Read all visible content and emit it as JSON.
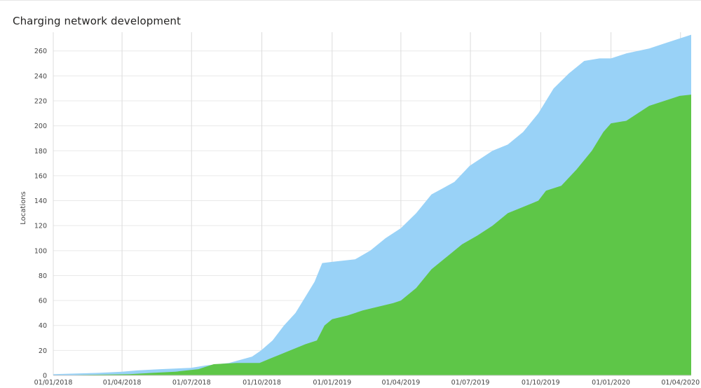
{
  "header": {
    "title": "Charging network development"
  },
  "chart_data": {
    "type": "area",
    "title": "Charging network development",
    "xlabel": "",
    "ylabel": "Locations",
    "ylim": [
      0,
      275
    ],
    "y_ticks": [
      0,
      20,
      40,
      60,
      80,
      100,
      120,
      140,
      160,
      180,
      200,
      220,
      240,
      260
    ],
    "x_range": [
      "2018-01-01",
      "2020-04-15"
    ],
    "x_ticks": [
      {
        "date": "2018-01-01",
        "label": "01/01/2018"
      },
      {
        "date": "2018-04-01",
        "label": "01/04/2018"
      },
      {
        "date": "2018-07-01",
        "label": "01/07/2018"
      },
      {
        "date": "2018-10-01",
        "label": "01/10/2018"
      },
      {
        "date": "2019-01-01",
        "label": "01/01/2019"
      },
      {
        "date": "2019-04-01",
        "label": "01/04/2019"
      },
      {
        "date": "2019-07-01",
        "label": "01/07/2019"
      },
      {
        "date": "2019-10-01",
        "label": "01/10/2019"
      },
      {
        "date": "2020-01-01",
        "label": "01/01/2020"
      },
      {
        "date": "2020-04-01",
        "label": "01/04/2020"
      }
    ],
    "grid": true,
    "stacked": false,
    "series": [
      {
        "color": "#99d2f7",
        "points": [
          [
            "2018-01-01",
            1
          ],
          [
            "2018-03-01",
            2
          ],
          [
            "2018-04-01",
            3
          ],
          [
            "2018-04-21",
            4
          ],
          [
            "2018-05-21",
            5
          ],
          [
            "2018-06-30",
            6
          ],
          [
            "2018-07-20",
            8
          ],
          [
            "2018-08-19",
            10
          ],
          [
            "2018-09-18",
            15
          ],
          [
            "2018-09-30",
            20
          ],
          [
            "2018-10-15",
            28
          ],
          [
            "2018-10-30",
            40
          ],
          [
            "2018-11-14",
            50
          ],
          [
            "2018-11-29",
            65
          ],
          [
            "2018-12-09",
            75
          ],
          [
            "2018-12-19",
            90
          ],
          [
            "2019-01-01",
            91
          ],
          [
            "2019-01-31",
            93
          ],
          [
            "2019-02-20",
            100
          ],
          [
            "2019-03-12",
            110
          ],
          [
            "2019-04-01",
            118
          ],
          [
            "2019-04-21",
            130
          ],
          [
            "2019-05-11",
            145
          ],
          [
            "2019-06-10",
            155
          ],
          [
            "2019-06-30",
            168
          ],
          [
            "2019-07-30",
            180
          ],
          [
            "2019-08-19",
            185
          ],
          [
            "2019-09-08",
            195
          ],
          [
            "2019-09-28",
            210
          ],
          [
            "2019-10-18",
            230
          ],
          [
            "2019-11-07",
            242
          ],
          [
            "2019-11-27",
            252
          ],
          [
            "2019-12-17",
            254
          ],
          [
            "2020-01-01",
            254
          ],
          [
            "2020-01-21",
            258
          ],
          [
            "2020-02-20",
            262
          ],
          [
            "2020-03-11",
            266
          ],
          [
            "2020-03-31",
            270
          ],
          [
            "2020-04-15",
            273
          ]
        ]
      },
      {
        "color": "#5ec648",
        "points": [
          [
            "2018-01-01",
            0
          ],
          [
            "2018-04-11",
            1
          ],
          [
            "2018-05-11",
            2
          ],
          [
            "2018-06-10",
            3
          ],
          [
            "2018-07-10",
            5
          ],
          [
            "2018-07-30",
            9
          ],
          [
            "2018-08-29",
            10
          ],
          [
            "2018-09-28",
            10
          ],
          [
            "2018-10-18",
            15
          ],
          [
            "2018-11-07",
            20
          ],
          [
            "2018-11-27",
            25
          ],
          [
            "2018-12-12",
            28
          ],
          [
            "2018-12-22",
            40
          ],
          [
            "2019-01-01",
            45
          ],
          [
            "2019-01-21",
            48
          ],
          [
            "2019-02-10",
            52
          ],
          [
            "2019-03-02",
            55
          ],
          [
            "2019-03-22",
            58
          ],
          [
            "2019-04-01",
            60
          ],
          [
            "2019-04-21",
            70
          ],
          [
            "2019-05-11",
            85
          ],
          [
            "2019-05-31",
            95
          ],
          [
            "2019-06-20",
            105
          ],
          [
            "2019-07-10",
            112
          ],
          [
            "2019-07-30",
            120
          ],
          [
            "2019-08-19",
            130
          ],
          [
            "2019-09-08",
            135
          ],
          [
            "2019-09-28",
            140
          ],
          [
            "2019-10-08",
            148
          ],
          [
            "2019-10-28",
            152
          ],
          [
            "2019-11-17",
            165
          ],
          [
            "2019-12-07",
            180
          ],
          [
            "2019-12-22",
            195
          ],
          [
            "2020-01-01",
            202
          ],
          [
            "2020-01-21",
            204
          ],
          [
            "2020-02-10",
            212
          ],
          [
            "2020-02-20",
            216
          ],
          [
            "2020-03-11",
            220
          ],
          [
            "2020-03-31",
            224
          ],
          [
            "2020-04-15",
            225
          ]
        ]
      }
    ]
  }
}
